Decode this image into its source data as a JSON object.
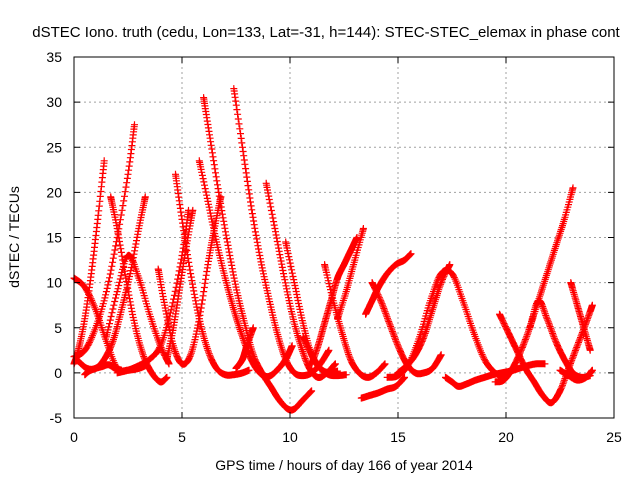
{
  "chart_data": {
    "type": "scatter",
    "title": "dSTEC Iono. truth (cedu, Lon=133, Lat=-31, h=144): STEC-STEC_elemax in phase cont",
    "xlabel": "GPS time / hours of day 166 of year 2014",
    "ylabel": "dSTEC  / TECUs",
    "xlim": [
      0,
      25
    ],
    "ylim": [
      -5,
      35
    ],
    "xticks": [
      0,
      5,
      10,
      15,
      20,
      25
    ],
    "yticks": [
      -5,
      0,
      5,
      10,
      15,
      20,
      25,
      30,
      35
    ],
    "xtick_labels": [
      "0",
      "5",
      "10",
      "15",
      "20",
      "25"
    ],
    "ytick_labels": [
      "-5",
      "0",
      "5",
      "10",
      "15",
      "20",
      "25",
      "30",
      "35"
    ],
    "grid": true,
    "marker": "+",
    "color": "#ff0000",
    "arcs": [
      {
        "x": [
          0.0,
          0.2,
          0.5,
          0.8,
          1.1,
          1.4
        ],
        "y": [
          1.0,
          2.5,
          6.0,
          11.0,
          17.0,
          23.5
        ]
      },
      {
        "x": [
          0.0,
          0.5,
          1.0,
          1.5,
          2.0,
          2.5,
          3.0,
          3.3
        ],
        "y": [
          10.5,
          9.5,
          7.0,
          3.5,
          0.5,
          0.3,
          0.5,
          0.8
        ]
      },
      {
        "x": [
          0.0,
          0.5,
          1.0,
          1.5,
          2.0,
          2.5,
          2.8
        ],
        "y": [
          1.8,
          2.5,
          5.0,
          9.0,
          15.0,
          22.0,
          27.5
        ]
      },
      {
        "x": [
          0.2,
          0.6,
          1.0,
          1.4,
          1.8,
          2.2,
          2.6,
          3.0,
          3.3
        ],
        "y": [
          1.3,
          0.5,
          0.5,
          1.5,
          3.5,
          7.0,
          11.0,
          16.0,
          19.5
        ]
      },
      {
        "x": [
          0.5,
          0.7,
          1.0,
          1.3,
          1.6,
          1.9,
          2.2
        ],
        "y": [
          -0.2,
          0.2,
          0.5,
          0.7,
          0.9,
          0.5,
          0.3
        ]
      },
      {
        "x": [
          1.7,
          2.0,
          2.4,
          2.8,
          3.2,
          3.6,
          4.0,
          4.3
        ],
        "y": [
          19.5,
          16.0,
          10.5,
          5.5,
          2.0,
          0.0,
          -1.0,
          -0.5
        ]
      },
      {
        "x": [
          1.5,
          2.0,
          2.5,
          3.0,
          3.5,
          4.0,
          4.4
        ],
        "y": [
          4.0,
          9.0,
          13.0,
          10.5,
          6.5,
          3.0,
          1.0
        ]
      },
      {
        "x": [
          2.0,
          2.5,
          3.0,
          3.5,
          4.0,
          4.5,
          5.0,
          5.3
        ],
        "y": [
          0.0,
          0.3,
          0.8,
          1.5,
          3.0,
          7.0,
          13.0,
          18.0
        ]
      },
      {
        "x": [
          3.9,
          4.2,
          4.6,
          5.0,
          5.4,
          5.8,
          6.2,
          6.5,
          6.8
        ],
        "y": [
          11.5,
          7.5,
          3.0,
          1.0,
          2.0,
          6.0,
          12.0,
          16.0,
          19.5
        ]
      },
      {
        "x": [
          4.7,
          5.0,
          5.4,
          5.8,
          6.2,
          6.6,
          7.0,
          7.4,
          7.8,
          8.1
        ],
        "y": [
          22.0,
          17.0,
          11.0,
          6.0,
          2.5,
          0.5,
          -0.2,
          -0.2,
          0.0,
          0.3
        ]
      },
      {
        "x": [
          4.3,
          4.6,
          4.9,
          5.2,
          5.5
        ],
        "y": [
          1.5,
          5.0,
          9.5,
          14.0,
          18.0
        ]
      },
      {
        "x": [
          5.8,
          6.2,
          6.6,
          7.0,
          7.4,
          7.8,
          8.2,
          8.6,
          9.0,
          9.4,
          9.8,
          10.1
        ],
        "y": [
          23.5,
          19.0,
          14.5,
          10.5,
          7.0,
          4.0,
          1.5,
          0.0,
          -0.4,
          0.3,
          1.5,
          3.0
        ]
      },
      {
        "x": [
          6.0,
          6.3,
          6.7,
          7.1,
          7.5,
          7.9,
          8.3,
          8.7,
          9.1,
          9.5,
          9.9,
          10.2,
          10.6,
          11.0
        ],
        "y": [
          30.5,
          26.0,
          20.0,
          14.5,
          9.5,
          5.5,
          2.0,
          0.0,
          -1.5,
          -3.0,
          -4.0,
          -4.0,
          -3.0,
          -2.0
        ]
      },
      {
        "x": [
          7.4,
          7.8,
          8.2,
          8.6,
          9.0,
          9.4,
          9.8,
          10.2,
          10.6,
          11.0,
          11.4,
          11.8
        ],
        "y": [
          31.5,
          25.0,
          18.5,
          13.0,
          8.5,
          4.5,
          1.5,
          0.0,
          -0.3,
          0.0,
          1.0,
          2.5
        ]
      },
      {
        "x": [
          8.9,
          9.3,
          9.7,
          10.1,
          10.5,
          10.9,
          11.3,
          11.7,
          12.1
        ],
        "y": [
          21.0,
          16.0,
          11.0,
          6.5,
          3.0,
          0.5,
          -0.5,
          0.0,
          1.0
        ]
      },
      {
        "x": [
          9.8,
          10.2,
          10.6,
          11.0,
          11.4,
          11.8,
          12.2
        ],
        "y": [
          14.5,
          10.0,
          5.5,
          2.0,
          0.5,
          0.0,
          0.2
        ]
      },
      {
        "x": [
          7.5,
          7.8,
          8.0,
          8.3
        ],
        "y": [
          0.5,
          1.5,
          3.0,
          5.0
        ]
      },
      {
        "x": [
          11.0,
          11.3,
          11.6,
          11.9,
          12.2,
          12.5,
          12.8,
          13.1
        ],
        "y": [
          1.0,
          3.0,
          5.5,
          8.0,
          10.5,
          12.0,
          13.5,
          15.0
        ]
      },
      {
        "x": [
          11.6,
          12.0,
          12.4,
          12.8,
          13.2,
          13.6,
          14.0,
          14.4
        ],
        "y": [
          12.0,
          8.0,
          4.5,
          1.5,
          0.0,
          -0.5,
          0.0,
          1.0
        ]
      },
      {
        "x": [
          10.6,
          11.0,
          11.4,
          11.8,
          12.2,
          12.6
        ],
        "y": [
          4.0,
          2.0,
          0.5,
          -0.2,
          -0.3,
          -0.2
        ]
      },
      {
        "x": [
          12.2,
          12.6,
          13.0,
          13.4
        ],
        "y": [
          6.0,
          9.0,
          12.5,
          16.0
        ]
      },
      {
        "x": [
          13.3,
          13.7,
          14.1,
          14.5,
          14.9,
          15.3
        ],
        "y": [
          -2.8,
          -2.5,
          -2.2,
          -1.8,
          -1.5,
          -0.5
        ]
      },
      {
        "x": [
          13.8,
          14.2,
          14.6,
          15.0,
          15.4,
          15.8,
          16.2,
          16.6,
          17.0
        ],
        "y": [
          10.0,
          8.0,
          5.5,
          3.0,
          1.0,
          0.0,
          0.0,
          0.5,
          2.0
        ]
      },
      {
        "x": [
          13.5,
          13.8,
          14.1,
          14.5,
          14.9,
          15.3,
          15.6
        ],
        "y": [
          6.5,
          8.0,
          9.5,
          11.0,
          12.0,
          12.5,
          13.2
        ]
      },
      {
        "x": [
          14.5,
          15.0,
          15.5,
          16.0,
          16.5,
          17.0,
          17.5,
          18.0,
          18.5,
          19.0,
          19.5,
          20.0
        ],
        "y": [
          -0.5,
          -0.3,
          1.0,
          4.0,
          8.0,
          11.0,
          11.0,
          8.0,
          4.5,
          1.5,
          0.0,
          -0.5
        ]
      },
      {
        "x": [
          15.0,
          15.4,
          15.8,
          16.2,
          16.6,
          17.0,
          17.4
        ],
        "y": [
          0.0,
          0.8,
          2.0,
          4.0,
          7.0,
          10.0,
          12.0
        ]
      },
      {
        "x": [
          17.2,
          17.5,
          17.8,
          18.2,
          18.6,
          19.0,
          19.4,
          19.8,
          20.2,
          20.6,
          21.0,
          21.4,
          21.8
        ],
        "y": [
          -0.5,
          -1.0,
          -1.5,
          -1.2,
          -0.8,
          -0.5,
          -0.2,
          0.0,
          0.2,
          0.5,
          0.8,
          1.0,
          1.0
        ]
      },
      {
        "x": [
          19.7,
          20.1,
          20.5,
          20.9,
          21.3,
          21.7,
          22.1,
          22.5,
          22.9,
          23.3,
          23.7,
          24.0
        ],
        "y": [
          6.5,
          4.5,
          2.5,
          0.5,
          -1.0,
          -2.5,
          -3.3,
          -2.0,
          0.5,
          3.0,
          5.5,
          7.5
        ]
      },
      {
        "x": [
          21.1,
          21.5,
          21.9,
          22.3,
          22.7,
          23.1
        ],
        "y": [
          5.0,
          8.0,
          11.0,
          14.0,
          17.0,
          20.5
        ]
      },
      {
        "x": [
          19.5,
          19.9,
          20.3,
          20.7,
          21.1,
          21.5,
          21.9,
          22.3,
          22.7,
          23.1,
          23.5,
          23.9
        ],
        "y": [
          -1.0,
          -0.8,
          0.5,
          2.5,
          5.0,
          8.0,
          6.0,
          3.5,
          1.5,
          0.0,
          -0.5,
          -0.3
        ]
      },
      {
        "x": [
          23.0,
          23.3,
          23.6,
          23.9
        ],
        "y": [
          10.0,
          7.5,
          5.0,
          2.5
        ]
      },
      {
        "x": [
          22.5,
          22.9,
          23.3,
          23.7,
          24.0
        ],
        "y": [
          0.3,
          -0.3,
          -0.8,
          -0.5,
          0.3
        ]
      }
    ]
  }
}
